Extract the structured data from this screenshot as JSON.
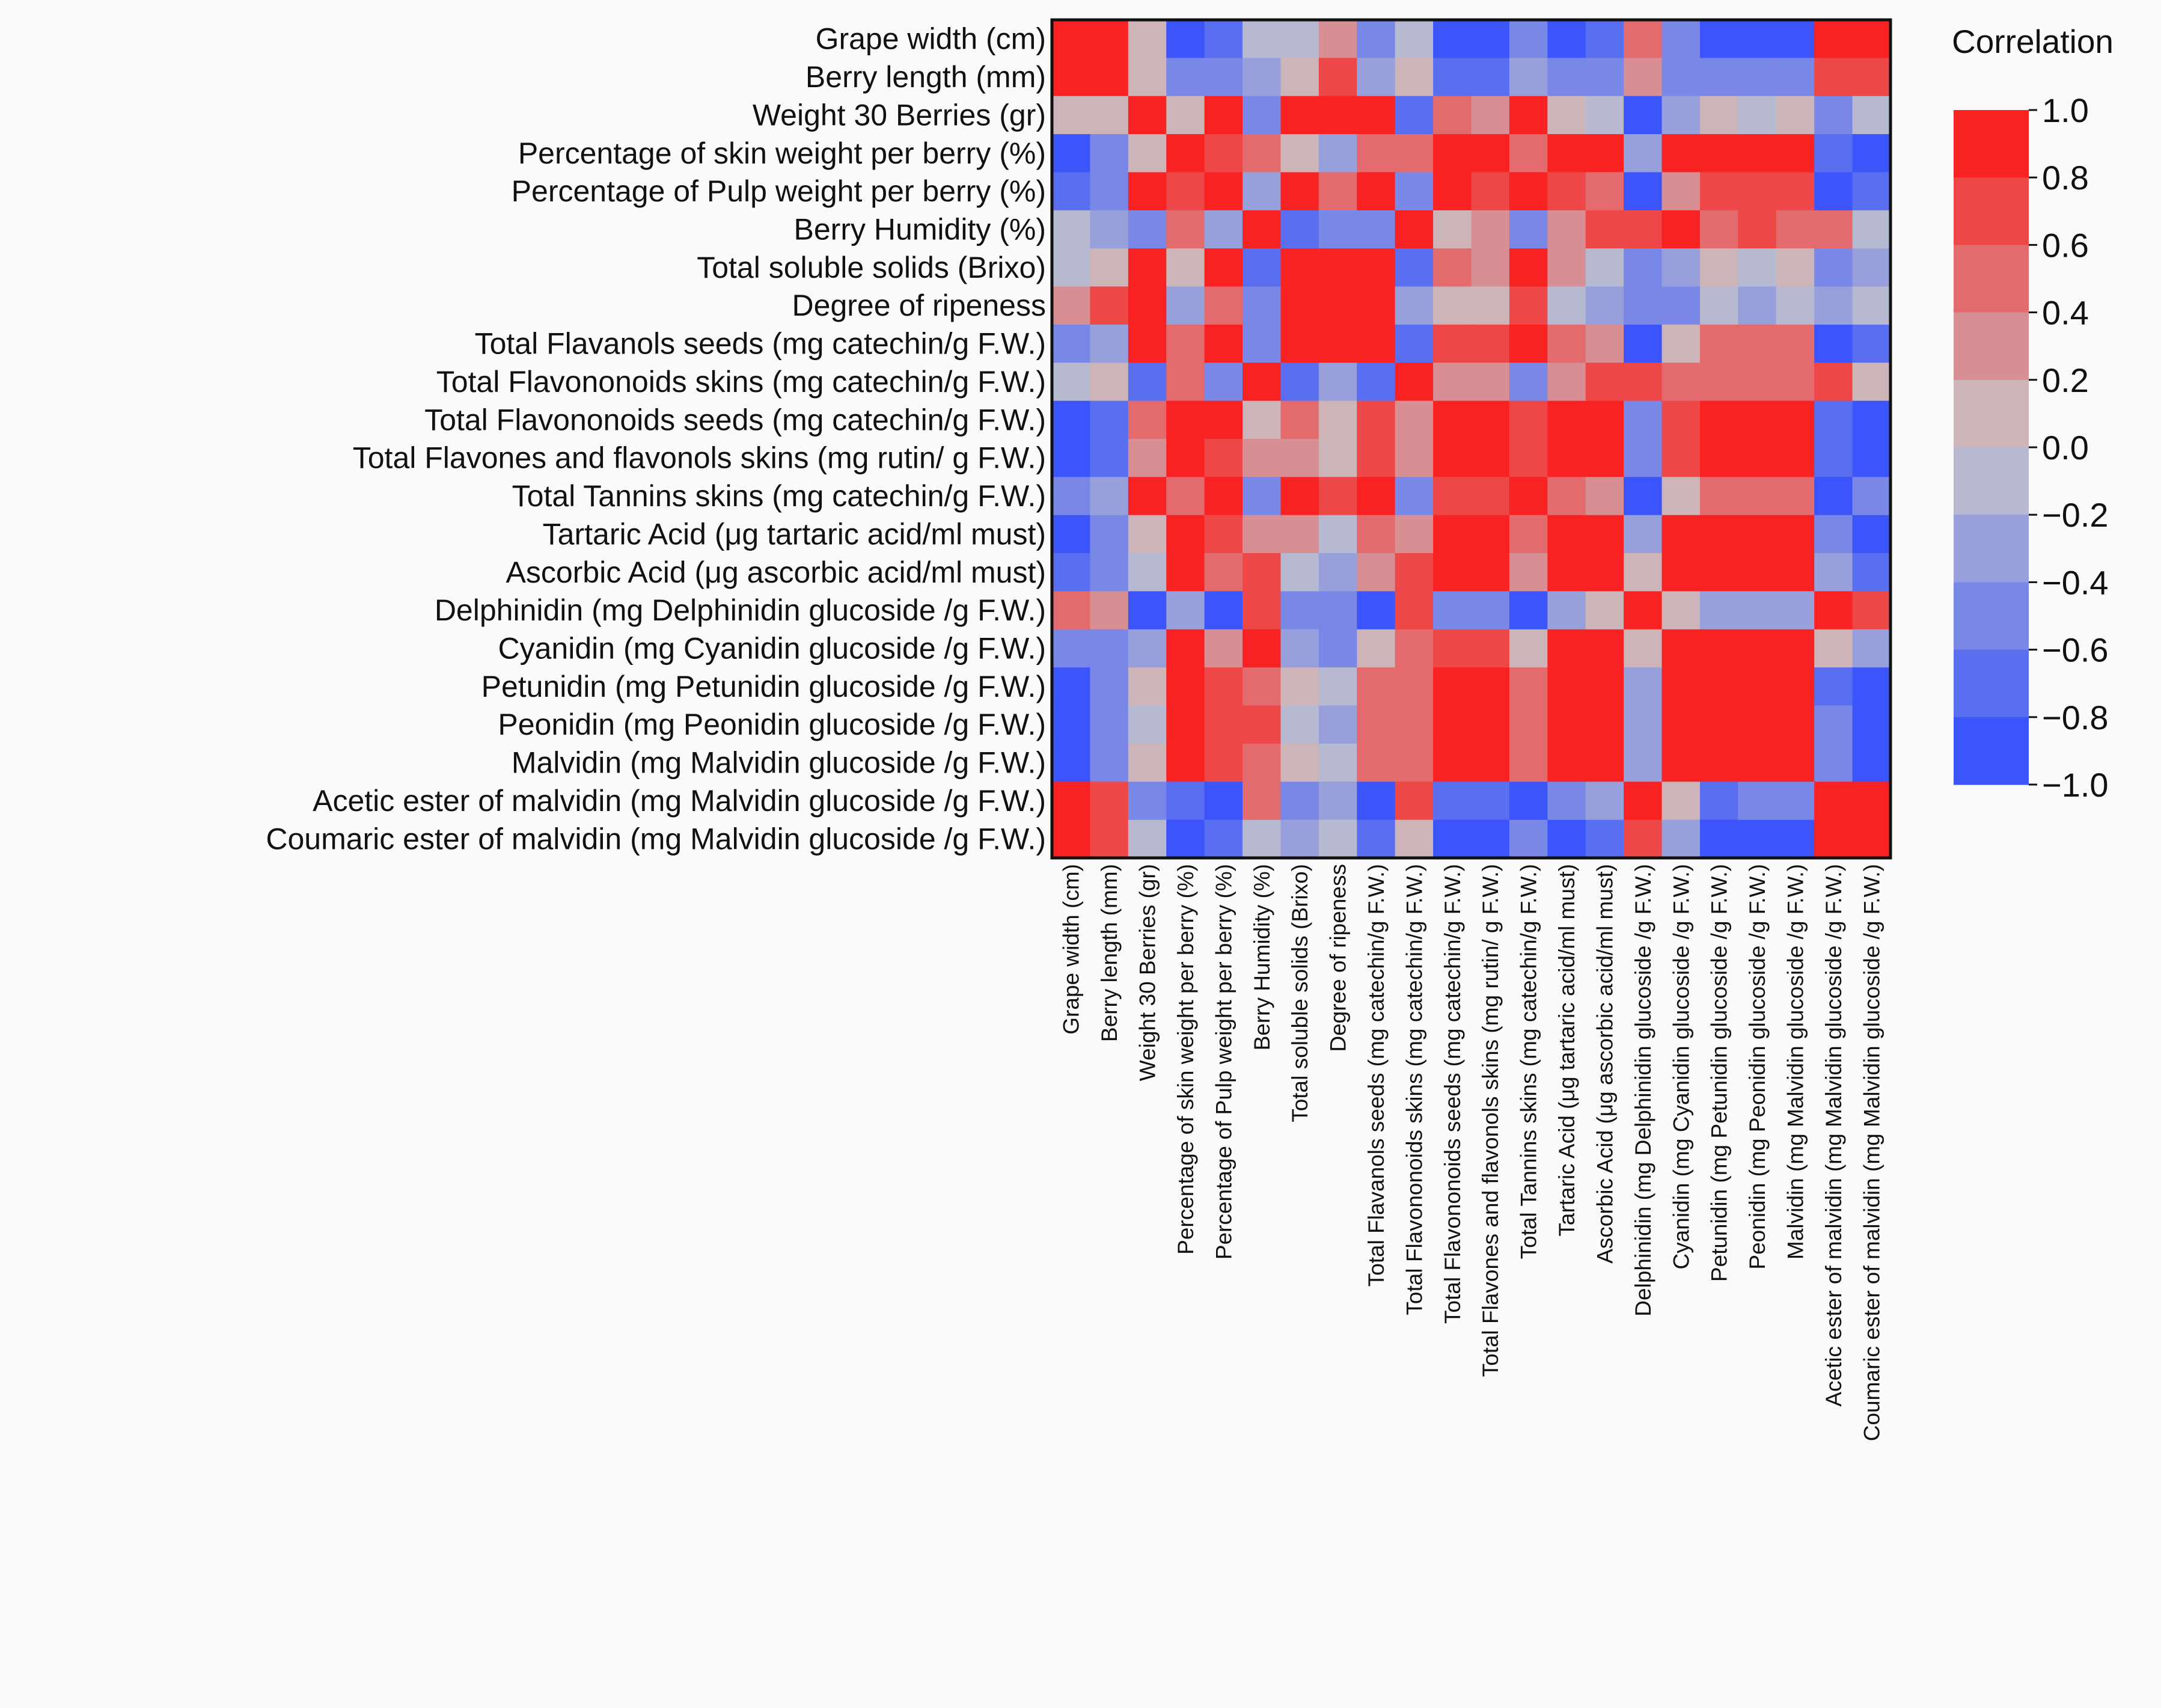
{
  "chart_data": {
    "type": "heatmap",
    "legend_title": "Correlation",
    "colorbar_ticks": [
      "1.0",
      "0.8",
      "0.6",
      "0.4",
      "0.2",
      "0.0",
      "−0.2",
      "−0.4",
      "−0.6",
      "−0.8",
      "−1.0"
    ],
    "colorbar_range": [
      -1.0,
      1.0
    ],
    "colors": {
      "negative": "#2b48ff",
      "neutral": "#c6c6cc",
      "positive": "#ff1010"
    },
    "row_labels": [
      "Grape width (cm)",
      "Berry length (mm)",
      "Weight 30 Berries (gr)",
      "Percentage of skin weight per berry (%)",
      "Percentage of Pulp weight per berry (%)",
      "Berry Humidity (%)",
      "Total soluble solids (Brixo)",
      "Degree of ripeness",
      "Total Flavanols seeds (mg catechin/g F.W.)",
      "Total  Flavononoids skins (mg catechin/g F.W.)",
      "Total  Flavononoids seeds (mg catechin/g F.W.)",
      "Total Flavones and flavonols skins (mg rutin/ g F.W.)",
      "Total Tannins skins (mg catechin/g F.W.)",
      "Tartaric Acid (μg tartaric acid/ml must)",
      "Ascorbic Acid (μg ascorbic acid/ml must)",
      "Delphinidin (mg Delphinidin  glucoside /g F.W.)",
      "Cyanidin (mg Cyanidin glucoside /g F.W.)",
      "Petunidin (mg Petunidin glucoside /g F.W.)",
      "Peonidin (mg Peonidin glucoside /g F.W.)",
      "Malvidin (mg Malvidin glucoside /g F.W.)",
      "Acetic ester of malvidin (mg Malvidin glucoside /g F.W.)",
      "Coumaric ester of malvidin (mg Malvidin glucoside /g F.W.)"
    ],
    "column_labels": [
      "Grape width (cm)",
      "Berry length (mm)",
      "Weight 30 Berries (gr)",
      "Percentage of skin weight per berry (%)",
      "Percentage of Pulp weight per berry (%)",
      "Berry Humidity (%)",
      "Total soluble solids (Brixo)",
      "Degree of ripeness",
      "Total Flavanols seeds (mg catechin/g F.W.)",
      "Total  Flavononoids skins (mg catechin/g F.W.)",
      "Total  Flavononoids seeds (mg catechin/g F.W.)",
      "Total Flavones and flavonols skins (mg rutin/ g F.W.)",
      "Total Tannins skins (mg catechin/g F.W.)",
      "Tartaric Acid (μg tartaric acid/ml must)",
      "Ascorbic Acid (μg ascorbic acid/ml must)",
      "Delphinidin (mg Delphinidin  glucoside /g F.W.)",
      "Cyanidin (mg Cyanidin glucoside /g F.W.)",
      "Petunidin (mg Petunidin glucoside /g F.W.)",
      "Peonidin (mg Peonidin glucoside /g F.W.)",
      "Malvidin (mg Malvidin glucoside /g F.W.)",
      "Acetic ester of malvidin (mg Malvidin glucoside /g F.W.)",
      "Coumaric ester of malvidin (mg Malvidin glucoside /g F.W.)"
    ],
    "values": [
      [
        1.0,
        0.9,
        0.0,
        -0.9,
        -0.7,
        -0.2,
        -0.1,
        0.2,
        -0.6,
        -0.1,
        -0.9,
        -0.9,
        -0.6,
        -0.9,
        -0.7,
        0.5,
        -0.5,
        -0.8,
        -0.8,
        -0.8,
        0.8,
        0.9
      ],
      [
        0.9,
        1.0,
        0.1,
        -0.6,
        -0.5,
        -0.4,
        0.0,
        0.6,
        -0.4,
        0.1,
        -0.7,
        -0.7,
        -0.4,
        -0.6,
        -0.6,
        0.2,
        -0.5,
        -0.6,
        -0.6,
        -0.6,
        0.6,
        0.6
      ],
      [
        0.0,
        0.1,
        1.0,
        0.0,
        0.8,
        -0.6,
        0.9,
        0.9,
        0.8,
        -0.7,
        0.4,
        0.3,
        0.8,
        0.0,
        -0.2,
        -0.8,
        -0.4,
        0.0,
        -0.2,
        0.0,
        -0.5,
        -0.2
      ],
      [
        -0.9,
        -0.6,
        0.0,
        1.0,
        0.7,
        0.4,
        0.1,
        -0.3,
        0.4,
        0.4,
        0.9,
        0.9,
        0.5,
        1.0,
        0.9,
        -0.3,
        0.8,
        0.9,
        0.9,
        0.9,
        -0.7,
        -0.9
      ],
      [
        -0.7,
        -0.5,
        0.8,
        0.7,
        1.0,
        -0.3,
        0.8,
        0.5,
        0.9,
        -0.5,
        0.8,
        0.7,
        0.9,
        0.7,
        0.5,
        -0.9,
        0.2,
        0.6,
        0.6,
        0.6,
        -0.8,
        -0.7
      ],
      [
        -0.2,
        -0.4,
        -0.6,
        0.4,
        -0.3,
        1.0,
        -0.7,
        -0.5,
        -0.6,
        0.8,
        0.1,
        0.2,
        -0.5,
        0.3,
        0.6,
        0.6,
        0.8,
        0.5,
        0.6,
        0.5,
        0.4,
        -0.2
      ],
      [
        -0.1,
        0.0,
        0.9,
        0.1,
        0.8,
        -0.7,
        1.0,
        0.8,
        0.9,
        -0.7,
        0.4,
        0.3,
        0.8,
        0.2,
        -0.1,
        -0.6,
        -0.4,
        0.1,
        -0.1,
        0.1,
        -0.6,
        -0.3
      ],
      [
        0.2,
        0.6,
        0.9,
        -0.3,
        0.5,
        -0.5,
        0.8,
        1.0,
        0.8,
        -0.4,
        0.1,
        0.0,
        0.6,
        -0.2,
        -0.4,
        -0.6,
        -0.6,
        -0.2,
        -0.3,
        -0.2,
        -0.3,
        -0.1
      ],
      [
        -0.6,
        -0.4,
        0.8,
        0.4,
        0.9,
        -0.6,
        0.9,
        0.8,
        1.0,
        -0.7,
        0.7,
        0.6,
        1.0,
        0.5,
        0.3,
        -0.9,
        0.0,
        0.5,
        0.4,
        0.5,
        -0.9,
        -0.7
      ],
      [
        -0.1,
        0.1,
        -0.7,
        0.4,
        -0.5,
        0.8,
        -0.7,
        -0.4,
        -0.7,
        1.0,
        0.2,
        0.3,
        -0.6,
        0.3,
        0.6,
        0.7,
        0.5,
        0.4,
        0.5,
        0.4,
        0.6,
        0.0
      ],
      [
        -0.9,
        -0.7,
        0.4,
        0.9,
        0.8,
        0.1,
        0.4,
        0.1,
        0.7,
        0.2,
        1.0,
        1.0,
        0.7,
        0.9,
        0.8,
        -0.6,
        0.6,
        0.9,
        0.9,
        0.9,
        -0.7,
        -0.9
      ],
      [
        -0.9,
        -0.7,
        0.3,
        0.9,
        0.7,
        0.2,
        0.3,
        0.0,
        0.6,
        0.3,
        1.0,
        1.0,
        0.6,
        0.9,
        0.8,
        -0.5,
        0.7,
        0.9,
        0.9,
        0.9,
        -0.7,
        -0.9
      ],
      [
        -0.6,
        -0.4,
        0.8,
        0.5,
        0.9,
        -0.5,
        0.8,
        0.6,
        1.0,
        -0.6,
        0.7,
        0.6,
        1.0,
        0.5,
        0.3,
        -0.9,
        0.1,
        0.5,
        0.4,
        0.5,
        -0.9,
        -0.6
      ],
      [
        -0.9,
        -0.6,
        0.0,
        1.0,
        0.7,
        0.3,
        0.2,
        -0.2,
        0.5,
        0.3,
        0.9,
        0.9,
        0.5,
        1.0,
        0.9,
        -0.3,
        0.8,
        0.9,
        0.9,
        0.9,
        -0.6,
        -0.8
      ],
      [
        -0.7,
        -0.6,
        -0.2,
        0.9,
        0.5,
        0.6,
        -0.1,
        -0.4,
        0.3,
        0.6,
        0.8,
        0.8,
        0.3,
        0.9,
        1.0,
        0.0,
        0.8,
        0.9,
        0.9,
        1.0,
        -0.4,
        -0.7
      ],
      [
        0.5,
        0.2,
        -0.8,
        -0.3,
        -0.9,
        0.6,
        -0.6,
        -0.6,
        -0.9,
        0.7,
        -0.6,
        -0.5,
        -0.9,
        -0.3,
        0.0,
        1.0,
        0.1,
        -0.4,
        -0.3,
        -0.3,
        0.9,
        0.6
      ],
      [
        -0.5,
        -0.5,
        -0.4,
        0.8,
        0.2,
        0.8,
        -0.4,
        -0.6,
        0.0,
        0.5,
        0.6,
        0.7,
        0.1,
        0.8,
        0.8,
        0.1,
        1.0,
        0.9,
        0.9,
        0.8,
        0.0,
        -0.4
      ],
      [
        -0.8,
        -0.6,
        0.0,
        0.9,
        0.6,
        0.5,
        0.1,
        -0.2,
        0.5,
        0.4,
        0.9,
        0.9,
        0.5,
        0.9,
        0.9,
        -0.4,
        0.9,
        1.0,
        0.9,
        0.9,
        -0.7,
        -0.8
      ],
      [
        -0.8,
        -0.6,
        -0.2,
        0.9,
        0.6,
        0.6,
        -0.1,
        -0.3,
        0.4,
        0.5,
        0.9,
        0.9,
        0.4,
        0.9,
        0.9,
        -0.3,
        0.9,
        0.9,
        1.0,
        0.9,
        -0.5,
        -0.8
      ],
      [
        -0.8,
        -0.6,
        0.0,
        0.9,
        0.6,
        0.5,
        0.1,
        -0.2,
        0.5,
        0.4,
        0.9,
        0.9,
        0.5,
        0.9,
        1.0,
        -0.3,
        0.8,
        0.9,
        0.9,
        1.0,
        -0.6,
        -0.8
      ],
      [
        0.8,
        0.6,
        -0.5,
        -0.7,
        -0.8,
        0.4,
        -0.6,
        -0.3,
        -0.9,
        0.6,
        -0.7,
        -0.7,
        -0.9,
        -0.6,
        -0.4,
        0.9,
        0.0,
        -0.7,
        -0.5,
        -0.6,
        1.0,
        0.8
      ],
      [
        0.9,
        0.6,
        -0.2,
        -0.9,
        -0.7,
        -0.2,
        -0.3,
        -0.1,
        -0.7,
        0.0,
        -0.9,
        -0.9,
        -0.6,
        -0.8,
        -0.7,
        0.6,
        -0.4,
        -0.8,
        -0.8,
        -0.8,
        0.8,
        1.0
      ]
    ]
  }
}
